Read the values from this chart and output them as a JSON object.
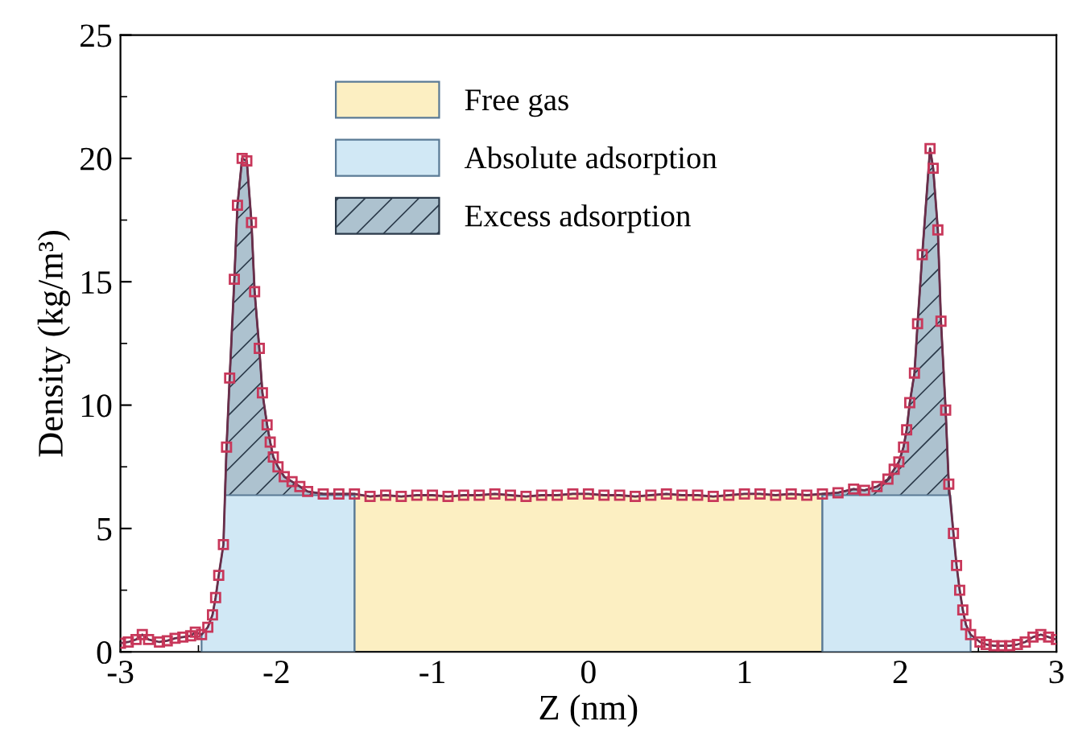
{
  "chart_data": {
    "type": "line",
    "xlabel": "Z (nm)",
    "ylabel": "Density (kg/m³)",
    "xlim": [
      -3,
      3
    ],
    "xticks": [
      {
        "value": -3,
        "label": "-3"
      },
      {
        "value": -2,
        "label": "-2"
      },
      {
        "value": -1,
        "label": "-1"
      },
      0,
      1,
      2,
      3
    ],
    "ylim": [
      0,
      25
    ],
    "yticks": [
      0,
      5,
      10,
      15,
      20,
      25
    ],
    "grid": false,
    "legend": "top left",
    "series": [
      {
        "name": "Free gas",
        "type": "area",
        "color": "#fcefc2",
        "x": [
          -1.5,
          -1.4,
          -1.3,
          -1.2,
          -1.1,
          -1.0,
          -0.9,
          -0.8,
          -0.7,
          -0.6,
          -0.5,
          -0.4,
          -0.3,
          -0.2,
          -0.1,
          0.0,
          0.1,
          0.2,
          0.3,
          0.4,
          0.5,
          0.6,
          0.7,
          0.8,
          0.9,
          1.0,
          1.1,
          1.2,
          1.3,
          1.4,
          1.5
        ],
        "values": [
          6.4,
          6.3,
          6.35,
          6.3,
          6.35,
          6.35,
          6.3,
          6.35,
          6.35,
          6.4,
          6.35,
          6.3,
          6.35,
          6.35,
          6.4,
          6.4,
          6.35,
          6.35,
          6.3,
          6.35,
          6.4,
          6.35,
          6.35,
          6.3,
          6.35,
          6.4,
          6.4,
          6.35,
          6.4,
          6.35,
          6.4
        ]
      },
      {
        "name": "Absolute adsorption",
        "type": "area",
        "color": "#d1e8f5",
        "x": [
          -2.48,
          -2.44,
          -2.41,
          -2.39,
          -2.37,
          -2.34,
          -2.33,
          -1.5,
          0.0,
          1.5,
          2.31,
          2.32,
          2.34,
          2.36,
          2.38,
          2.4,
          2.42,
          2.45
        ],
        "values": [
          0.7,
          1.0,
          1.5,
          2.2,
          3.1,
          4.35,
          6.35,
          6.35,
          null,
          6.35,
          6.35,
          6.35,
          4.8,
          3.5,
          2.5,
          1.7,
          1.1,
          0.7
        ]
      },
      {
        "name": "Excess adsorption",
        "type": "area",
        "color": "#2b3a4a",
        "x": [
          -2.33,
          -2.32,
          -2.3,
          -2.27,
          -2.25,
          -2.22,
          -2.19,
          -2.16,
          -2.14,
          -2.11,
          -2.09,
          -2.06,
          -2.04,
          -2.02,
          -1.99,
          -1.95,
          -1.9,
          -1.85,
          -1.8,
          -1.7,
          -1.6,
          -1.5,
          0.0,
          1.5,
          1.6,
          1.7,
          1.77,
          1.85,
          1.92,
          1.96,
          1.99,
          2.02,
          2.04,
          2.06,
          2.09,
          2.11,
          2.14,
          2.19,
          2.21,
          2.24,
          2.26,
          2.29,
          2.31
        ],
        "values": [
          6.35,
          8.3,
          11.1,
          15.1,
          18.1,
          20.0,
          19.9,
          17.4,
          14.6,
          12.3,
          10.5,
          9.2,
          8.5,
          7.9,
          7.5,
          7.1,
          6.9,
          6.7,
          6.5,
          6.4,
          6.4,
          6.4,
          null,
          6.4,
          6.45,
          6.6,
          6.55,
          6.7,
          7.0,
          7.4,
          7.7,
          8.3,
          9.0,
          10.1,
          11.3,
          13.3,
          16.1,
          20.4,
          19.6,
          17.1,
          13.4,
          9.8,
          6.8
        ]
      },
      {
        "marker": "square",
        "color": "#c8375a",
        "x": [
          -3,
          -2.95,
          -2.9,
          -2.86,
          -2.82,
          -2.75,
          -2.7,
          -2.65,
          -2.6,
          -2.55,
          -2.52,
          -2.48,
          -2.44,
          -2.41,
          -2.39,
          -2.37,
          -2.34,
          -2.32,
          -2.3,
          -2.27,
          -2.25,
          -2.22,
          -2.19,
          -2.16,
          -2.14,
          -2.11,
          -2.09,
          -2.06,
          -2.04,
          -2.02,
          -1.99,
          -1.95,
          -1.9,
          -1.85,
          -1.8,
          -1.7,
          -1.6,
          -1.5,
          -1.4,
          -1.3,
          -1.2,
          -1.1,
          -1.0,
          -0.9,
          -0.8,
          -0.7,
          -0.6,
          -0.5,
          -0.4,
          -0.3,
          -0.2,
          -0.1,
          0.0,
          0.1,
          0.2,
          0.3,
          0.4,
          0.5,
          0.6,
          0.7,
          0.8,
          0.9,
          1.0,
          1.1,
          1.2,
          1.3,
          1.4,
          1.5,
          1.6,
          1.7,
          1.77,
          1.85,
          1.92,
          1.96,
          1.99,
          2.02,
          2.04,
          2.06,
          2.09,
          2.11,
          2.14,
          2.19,
          2.21,
          2.24,
          2.26,
          2.29,
          2.31,
          2.34,
          2.36,
          2.38,
          2.4,
          2.42,
          2.45,
          2.51,
          2.55,
          2.6,
          2.65,
          2.7,
          2.75,
          2.8,
          2.85,
          2.9,
          2.95,
          3.0
        ],
        "values": [
          0.35,
          0.4,
          0.5,
          0.7,
          0.5,
          0.4,
          0.45,
          0.55,
          0.6,
          0.65,
          0.8,
          0.7,
          1.0,
          1.5,
          2.2,
          3.1,
          4.35,
          8.3,
          11.1,
          15.1,
          18.1,
          20.0,
          19.9,
          17.4,
          14.6,
          12.3,
          10.5,
          9.2,
          8.5,
          7.9,
          7.5,
          7.1,
          6.9,
          6.7,
          6.5,
          6.4,
          6.4,
          6.4,
          6.3,
          6.35,
          6.3,
          6.35,
          6.35,
          6.3,
          6.35,
          6.35,
          6.4,
          6.35,
          6.3,
          6.35,
          6.35,
          6.4,
          6.4,
          6.35,
          6.35,
          6.3,
          6.35,
          6.4,
          6.35,
          6.35,
          6.3,
          6.35,
          6.4,
          6.4,
          6.35,
          6.4,
          6.35,
          6.4,
          6.45,
          6.6,
          6.55,
          6.7,
          7.0,
          7.4,
          7.7,
          8.3,
          9.0,
          10.1,
          11.3,
          13.3,
          16.1,
          20.4,
          19.6,
          17.1,
          13.4,
          9.8,
          6.8,
          4.8,
          3.5,
          2.5,
          1.7,
          1.1,
          0.7,
          0.4,
          0.3,
          0.25,
          0.25,
          0.25,
          0.3,
          0.4,
          0.6,
          0.7,
          0.6,
          0.5
        ]
      }
    ]
  }
}
